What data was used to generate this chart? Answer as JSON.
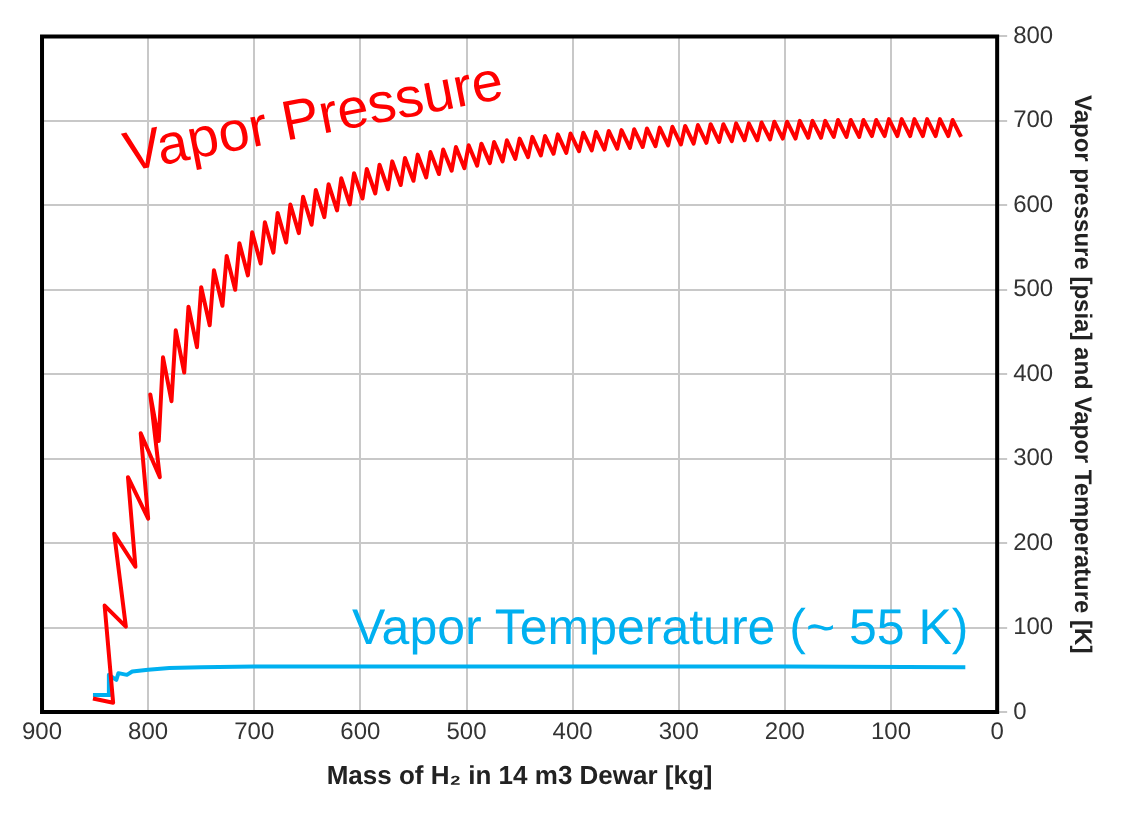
{
  "chart_data": {
    "type": "line",
    "xlabel": "Mass of H₂ in 14 m3 Dewar [kg]",
    "ylabel": "Vapor pressure [psia] and Vapor Temperature [K]",
    "xlim": [
      900,
      0
    ],
    "xticks": [
      900,
      800,
      700,
      600,
      500,
      400,
      300,
      200,
      100,
      0
    ],
    "ylim": [
      0,
      800
    ],
    "yticks": [
      0,
      100,
      200,
      300,
      400,
      500,
      600,
      700,
      800
    ],
    "grid": true,
    "legend": false,
    "marker": "none",
    "line_style": "solid",
    "series": [
      {
        "name": "Vapor Pressure",
        "color": "#ff0000",
        "x": [
          852,
          833,
          841,
          821,
          832,
          812,
          819,
          800,
          807,
          789,
          798,
          790,
          786,
          778,
          774,
          766,
          762,
          754,
          750,
          742,
          738,
          730,
          726,
          718,
          714,
          706,
          702,
          694,
          690,
          682,
          678,
          670,
          666,
          658,
          654,
          646,
          642,
          634,
          630,
          622,
          618,
          610,
          606,
          598,
          594,
          586,
          582,
          574,
          570,
          562,
          558,
          550,
          546,
          538,
          534,
          526,
          522,
          514,
          510,
          502,
          498,
          490,
          486,
          478,
          474,
          466,
          462,
          454,
          450,
          442,
          438,
          430,
          426,
          418,
          414,
          406,
          402,
          394,
          390,
          382,
          378,
          370,
          366,
          358,
          354,
          346,
          342,
          334,
          330,
          322,
          318,
          310,
          306,
          298,
          294,
          286,
          282,
          274,
          270,
          262,
          258,
          250,
          246,
          238,
          234,
          226,
          222,
          214,
          210,
          202,
          198,
          190,
          186,
          178,
          174,
          166,
          162,
          154,
          150,
          142,
          138,
          130,
          126,
          118,
          114,
          106,
          102,
          94,
          90,
          82,
          78,
          70,
          66,
          58,
          54,
          46,
          42,
          34
        ],
        "values": [
          16,
          11,
          126,
          101,
          211,
          172,
          278,
          229,
          330,
          278,
          376,
          321,
          420,
          368,
          452,
          402,
          480,
          432,
          503,
          458,
          523,
          481,
          540,
          500,
          555,
          517,
          568,
          531,
          580,
          544,
          591,
          556,
          601,
          567,
          610,
          577,
          618,
          586,
          625,
          594,
          632,
          601,
          638,
          608,
          643,
          614,
          648,
          619,
          652,
          624,
          656,
          629,
          660,
          633,
          663,
          637,
          666,
          641,
          669,
          644,
          671,
          647,
          673,
          650,
          675,
          652,
          677,
          655,
          679,
          657,
          681,
          659,
          682,
          661,
          684,
          662,
          685,
          664,
          686,
          665,
          687,
          666,
          688,
          667,
          689,
          668,
          690,
          669,
          691,
          670,
          692,
          671,
          693,
          672,
          694,
          673,
          695,
          674,
          696,
          675,
          696,
          676,
          697,
          677,
          697,
          677,
          698,
          678,
          699,
          679,
          699,
          679,
          700,
          680,
          700,
          680,
          700,
          681,
          701,
          681,
          701,
          681,
          701,
          682,
          701,
          682,
          702,
          682,
          702,
          682,
          702,
          682,
          702,
          682,
          702,
          682,
          701,
          681
        ]
      },
      {
        "name": "Vapor Temperature (~ 55 K)",
        "color": "#00b0f0",
        "x": [
          852,
          836,
          837,
          830,
          828,
          820,
          815,
          800,
          780,
          750,
          700,
          600,
          400,
          200,
          30
        ],
        "values": [
          20,
          20,
          44,
          38,
          46,
          44,
          48,
          50,
          52,
          53,
          54,
          54,
          54,
          54,
          53
        ]
      }
    ]
  }
}
